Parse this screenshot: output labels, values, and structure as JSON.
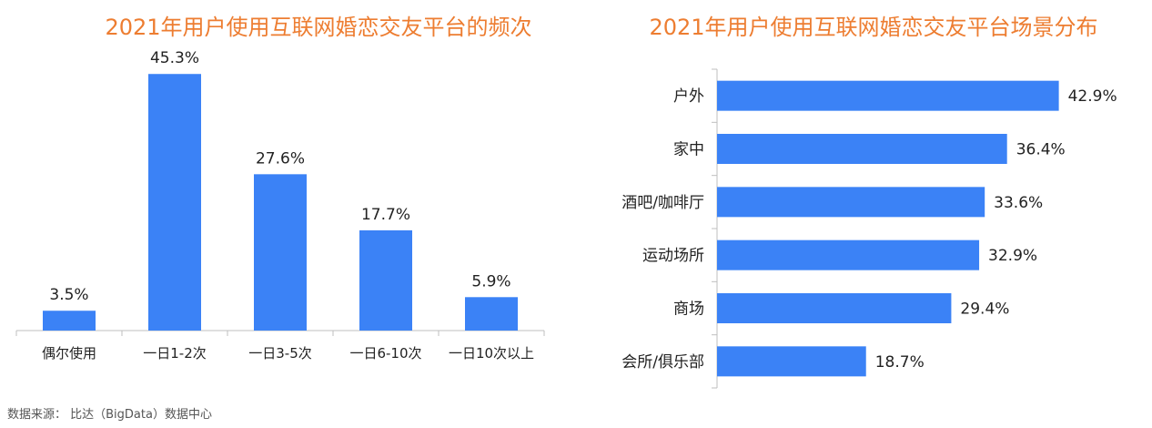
{
  "source_note": "数据来源： 比达（BigData）数据中心",
  "colors": {
    "bar": "#3B82F6",
    "title": "#ED7D31",
    "axis": "#bfbfbf",
    "text": "#222222"
  },
  "chart_data": [
    {
      "type": "bar",
      "title": "2021年用户使用互联网婚恋交友平台的频次",
      "categories": [
        "偶尔使用",
        "一日1-2次",
        "一日3-5次",
        "一日6-10次",
        "一日10次以上"
      ],
      "values": [
        3.5,
        45.3,
        27.6,
        17.7,
        5.9
      ],
      "value_labels": [
        "3.5%",
        "45.3%",
        "27.6%",
        "17.7%",
        "5.9%"
      ],
      "ylim": [
        0,
        50
      ],
      "grid": false,
      "legend": "none"
    },
    {
      "type": "bar",
      "orientation": "horizontal",
      "title": "2021年用户使用互联网婚恋交友平台场景分布",
      "categories": [
        "户外",
        "家中",
        "酒吧/咖啡厅",
        "运动场所",
        "商场",
        "会所/俱乐部"
      ],
      "values": [
        42.9,
        36.4,
        33.6,
        32.9,
        29.4,
        18.7
      ],
      "value_labels": [
        "42.9%",
        "36.4%",
        "33.6%",
        "32.9%",
        "29.4%",
        "18.7%"
      ],
      "xlim": [
        0,
        45
      ],
      "grid": false,
      "legend": "none"
    }
  ]
}
